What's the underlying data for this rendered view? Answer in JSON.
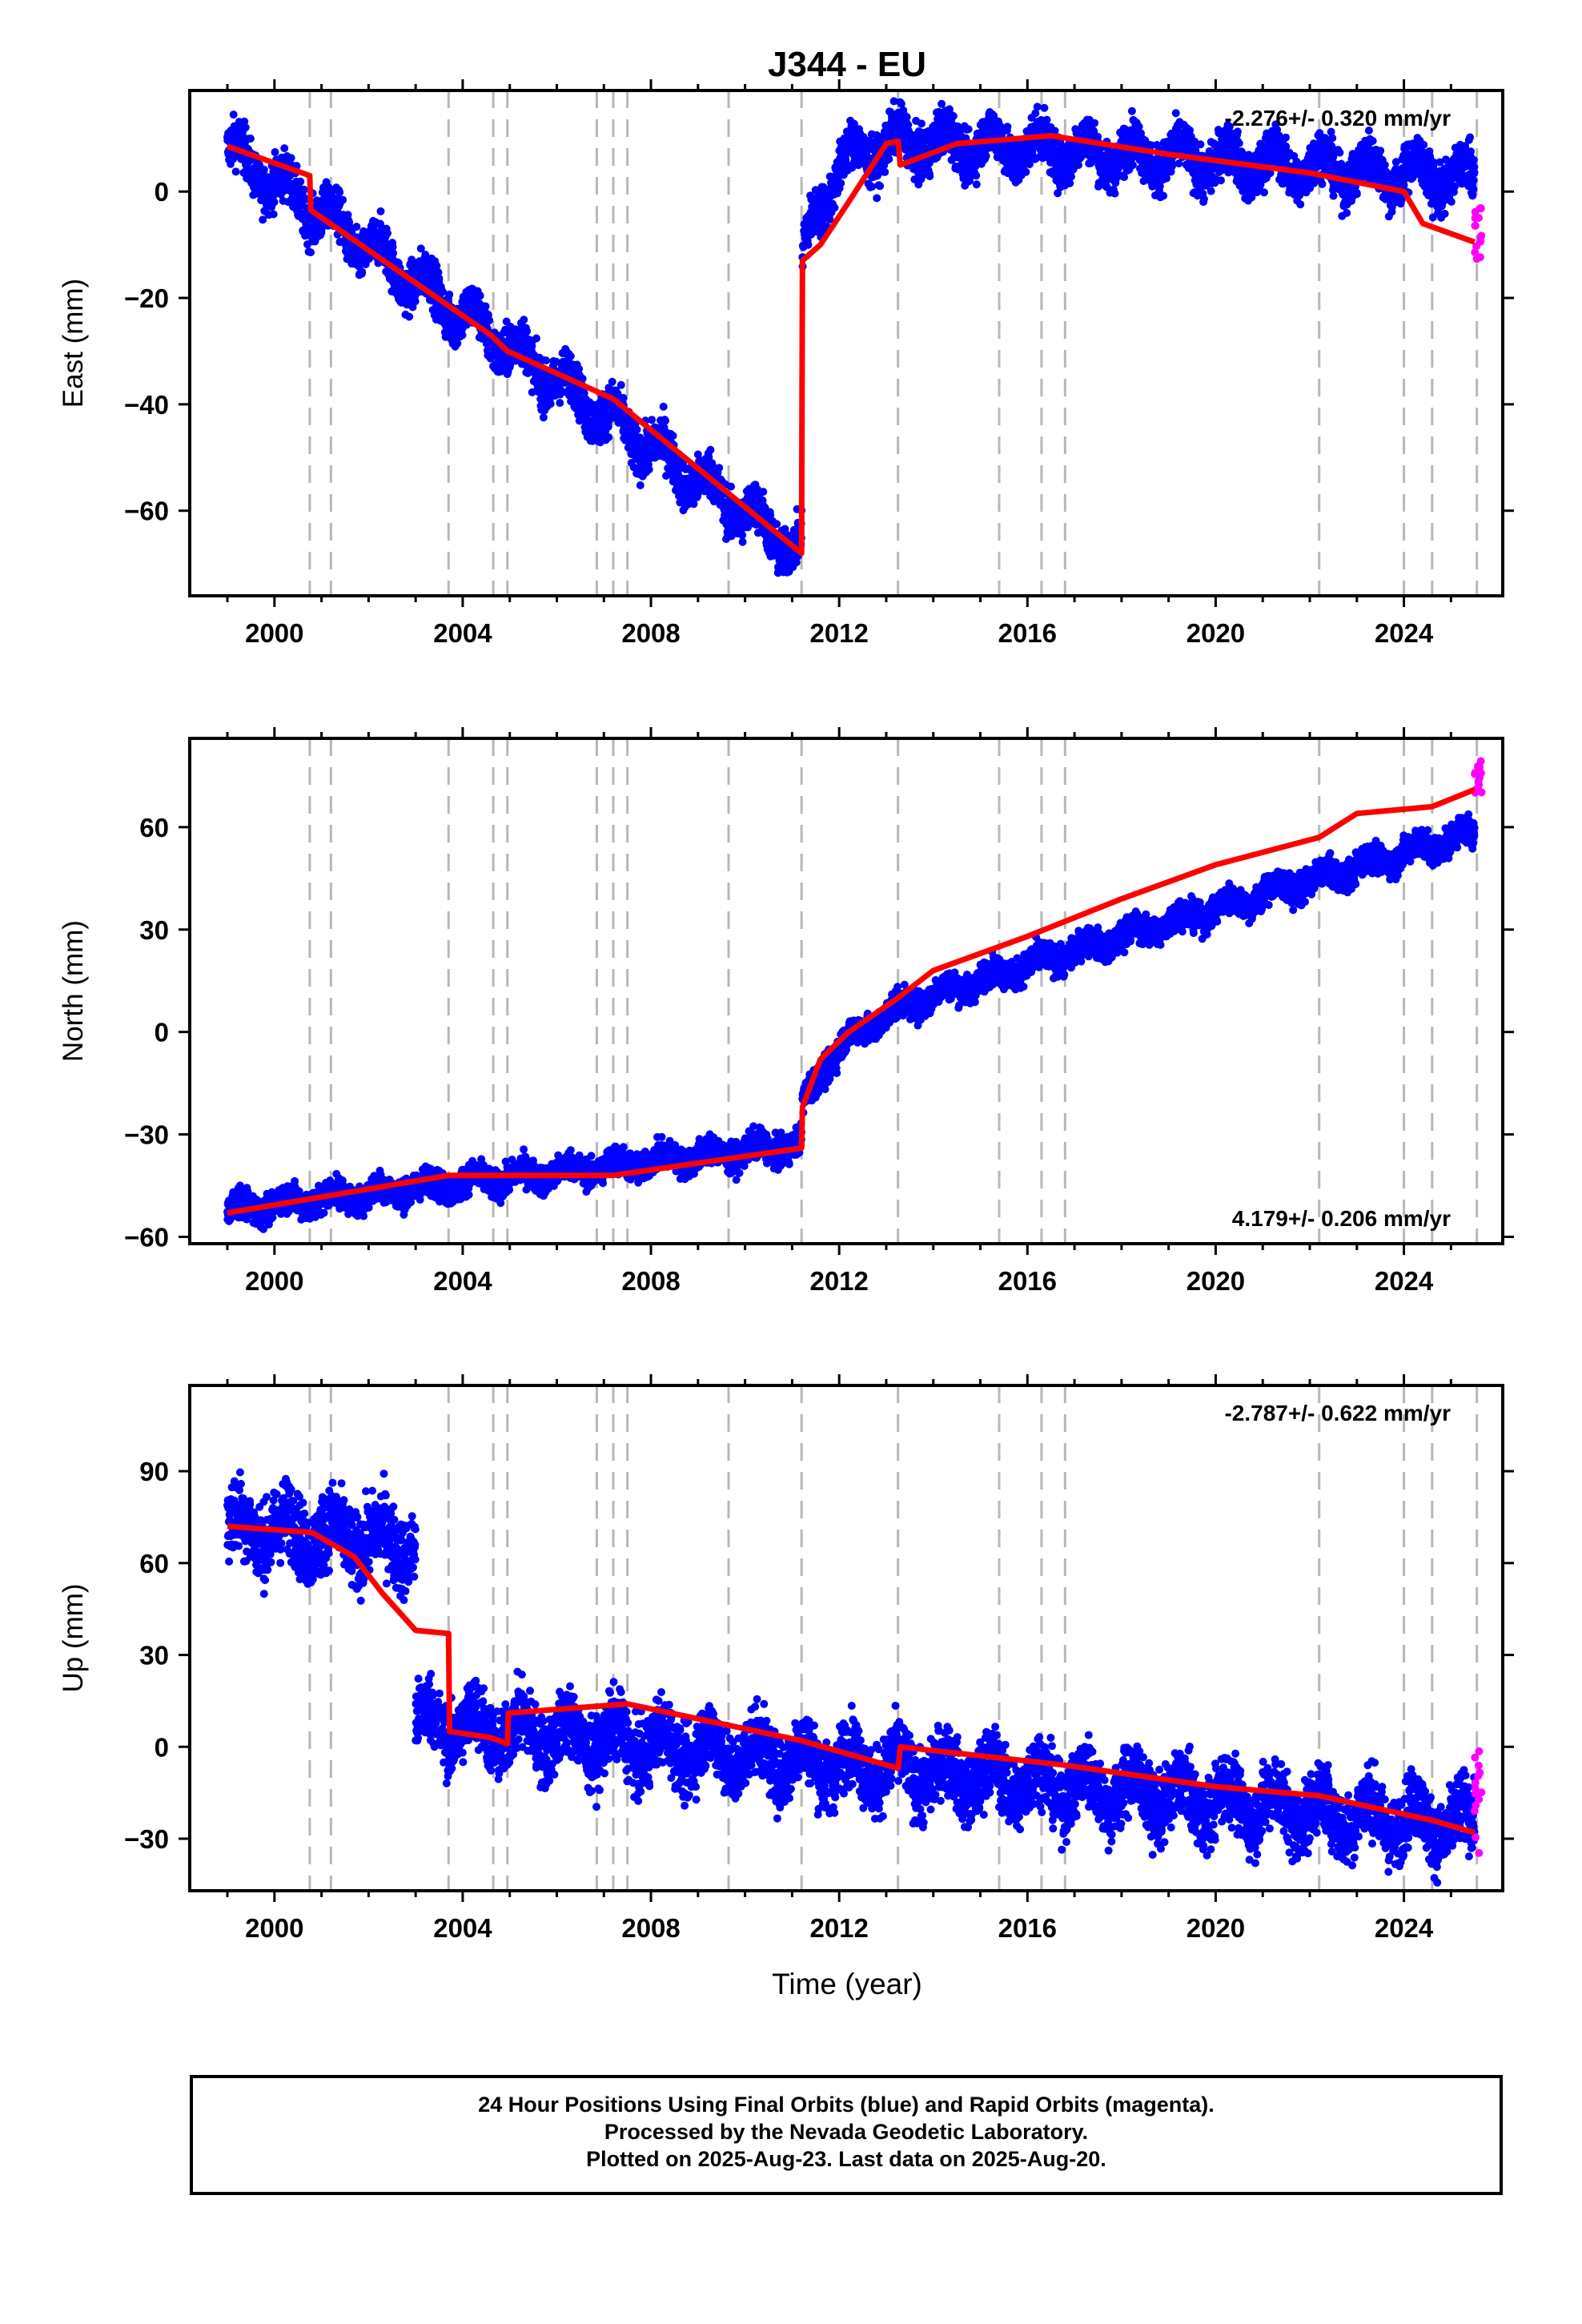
{
  "title": "J344 - EU",
  "xlabel": "Time (year)",
  "caption": [
    "24 Hour Positions Using Final Orbits (blue) and Rapid Orbits (magenta).",
    "Processed by the Nevada Geodetic Laboratory.",
    "Plotted on 2025-Aug-23. Last data on 2025-Aug-20."
  ],
  "colors": {
    "final_orbits": "#0000ff",
    "rapid_orbits": "#ff00ff",
    "model": "#ff0000",
    "event_lines": "#b8b8b8"
  },
  "chart_data": [
    {
      "type": "scatter",
      "ylabel": "East (mm)",
      "rate_label": "-2.276+/- 0.320 mm/yr",
      "rate_position": "top-right",
      "xlim": [
        1998.2,
        2026.1
      ],
      "ylim": [
        -76,
        19
      ],
      "xticks": [
        2000,
        2004,
        2008,
        2012,
        2016,
        2020,
        2024
      ],
      "yticks": [
        0,
        -20,
        -40,
        -60
      ],
      "event_lines": [
        2000.75,
        2001.2,
        2003.7,
        2004.65,
        2004.95,
        2006.85,
        2007.2,
        2007.5,
        2009.65,
        2011.2,
        2013.25,
        2015.4,
        2016.3,
        2016.8,
        2022.2,
        2024.0,
        2024.6,
        2025.55
      ],
      "series": [
        {
          "name": "Final Orbits",
          "color": "#0000ff",
          "segments": [
            {
              "x0": 1999.0,
              "x1": 2011.2,
              "kind": "linear",
              "start": 8.0,
              "end": -68.0,
              "spread": 3.2,
              "season": 3.0
            },
            {
              "x0": 2011.22,
              "x1": 2025.5,
              "kind": "postseismic",
              "start": -13.0,
              "rise": 24.0,
              "tau": 0.6,
              "slope": -0.6,
              "season": 3.0,
              "spread": 3.2,
              "ref": 2011.22
            }
          ]
        },
        {
          "name": "Rapid Orbits",
          "color": "#ff00ff",
          "x_range": [
            2025.5,
            2025.65
          ],
          "y_range": [
            -13,
            -3
          ]
        }
      ],
      "model": [
        [
          1999.0,
          8.5
        ],
        [
          2000.75,
          3.0
        ],
        [
          2000.77,
          -3.5
        ],
        [
          2004.6,
          -27.0
        ],
        [
          2004.95,
          -30.0
        ],
        [
          2007.2,
          -39.0
        ],
        [
          2011.2,
          -68.0
        ],
        [
          2011.22,
          -13.0
        ],
        [
          2011.6,
          -10.0
        ],
        [
          2012.2,
          -2.0
        ],
        [
          2013.0,
          9.0
        ],
        [
          2013.25,
          9.5
        ],
        [
          2013.3,
          5.0
        ],
        [
          2014.5,
          9.0
        ],
        [
          2016.5,
          10.5
        ],
        [
          2019.0,
          7.0
        ],
        [
          2022.0,
          3.5
        ],
        [
          2024.0,
          0.0
        ],
        [
          2024.4,
          -6.0
        ],
        [
          2025.5,
          -9.5
        ]
      ]
    },
    {
      "type": "scatter",
      "ylabel": "North (mm)",
      "rate_label": "4.179+/- 0.206 mm/yr",
      "rate_position": "bottom-right",
      "xlim": [
        1998.2,
        2026.1
      ],
      "ylim": [
        -62,
        86
      ],
      "xticks": [
        2000,
        2004,
        2008,
        2012,
        2016,
        2020,
        2024
      ],
      "yticks": [
        60,
        30,
        0,
        -30,
        -60
      ],
      "event_lines": [
        2000.75,
        2001.2,
        2003.7,
        2004.65,
        2004.95,
        2006.85,
        2007.2,
        2007.5,
        2009.65,
        2011.2,
        2013.25,
        2015.4,
        2016.3,
        2016.8,
        2022.2,
        2024.0,
        2024.6,
        2025.55
      ],
      "series": [
        {
          "name": "Final Orbits",
          "color": "#0000ff",
          "segments": [
            {
              "x0": 1999.0,
              "x1": 2011.2,
              "kind": "linear",
              "start": -52.0,
              "end": -33.0,
              "spread": 3.0,
              "season": 2.0
            },
            {
              "x0": 2011.22,
              "x1": 2025.5,
              "kind": "postseismic",
              "start": -22.0,
              "rise": 22.0,
              "tau": 0.8,
              "slope": 4.1,
              "season": 2.0,
              "spread": 3.0,
              "ref": 2011.22
            }
          ]
        },
        {
          "name": "Rapid Orbits",
          "color": "#ff00ff",
          "x_range": [
            2025.5,
            2025.65
          ],
          "y_range": [
            68,
            82
          ]
        }
      ],
      "model": [
        [
          1999.0,
          -53.0
        ],
        [
          2003.7,
          -42.0
        ],
        [
          2007.2,
          -42.0
        ],
        [
          2011.2,
          -34.0
        ],
        [
          2011.22,
          -22.0
        ],
        [
          2011.6,
          -8.0
        ],
        [
          2012.2,
          0.0
        ],
        [
          2013.25,
          10.0
        ],
        [
          2014.0,
          18.0
        ],
        [
          2016.0,
          28.0
        ],
        [
          2018.0,
          39.0
        ],
        [
          2020.0,
          49.0
        ],
        [
          2022.2,
          57.0
        ],
        [
          2023.0,
          64.0
        ],
        [
          2024.6,
          66.0
        ],
        [
          2025.5,
          71.0
        ]
      ]
    },
    {
      "type": "scatter",
      "ylabel": "Up (mm)",
      "rate_label": "-2.787+/- 0.622 mm/yr",
      "rate_position": "top-right",
      "xlim": [
        1998.2,
        2026.1
      ],
      "ylim": [
        -47,
        118
      ],
      "xticks": [
        2000,
        2004,
        2008,
        2012,
        2016,
        2020,
        2024
      ],
      "yticks": [
        90,
        60,
        30,
        0,
        -30
      ],
      "event_lines": [
        2000.75,
        2001.2,
        2003.7,
        2004.65,
        2004.95,
        2006.85,
        2007.2,
        2007.5,
        2009.65,
        2011.2,
        2013.25,
        2015.4,
        2016.3,
        2016.8,
        2022.2,
        2024.0,
        2024.6,
        2025.55
      ],
      "series": [
        {
          "name": "Final Orbits",
          "color": "#0000ff",
          "segments": [
            {
              "x0": 1999.0,
              "x1": 2003.0,
              "kind": "linear",
              "start": 72.0,
              "end": 66.0,
              "spread": 9.0,
              "season": 5.0
            },
            {
              "x0": 2003.0,
              "x1": 2025.5,
              "kind": "linear",
              "start": 8.0,
              "end": -26.0,
              "spread": 8.0,
              "season": 6.0
            }
          ]
        },
        {
          "name": "Rapid Orbits",
          "color": "#ff00ff",
          "x_range": [
            2025.5,
            2025.65
          ],
          "y_range": [
            -37,
            1
          ]
        }
      ],
      "model": [
        [
          1999.0,
          72.0
        ],
        [
          2000.8,
          70.0
        ],
        [
          2001.7,
          62.0
        ],
        [
          2002.3,
          50.0
        ],
        [
          2003.0,
          38.0
        ],
        [
          2003.7,
          37.0
        ],
        [
          2003.72,
          5.0
        ],
        [
          2004.6,
          3.0
        ],
        [
          2004.95,
          1.0
        ],
        [
          2004.97,
          11.0
        ],
        [
          2007.5,
          14.0
        ],
        [
          2011.2,
          2.0
        ],
        [
          2013.25,
          -7.0
        ],
        [
          2013.3,
          0.0
        ],
        [
          2016.8,
          -6.0
        ],
        [
          2020.0,
          -13.0
        ],
        [
          2022.2,
          -16.0
        ],
        [
          2024.0,
          -22.0
        ],
        [
          2024.6,
          -24.0
        ],
        [
          2025.5,
          -28.0
        ]
      ]
    }
  ]
}
